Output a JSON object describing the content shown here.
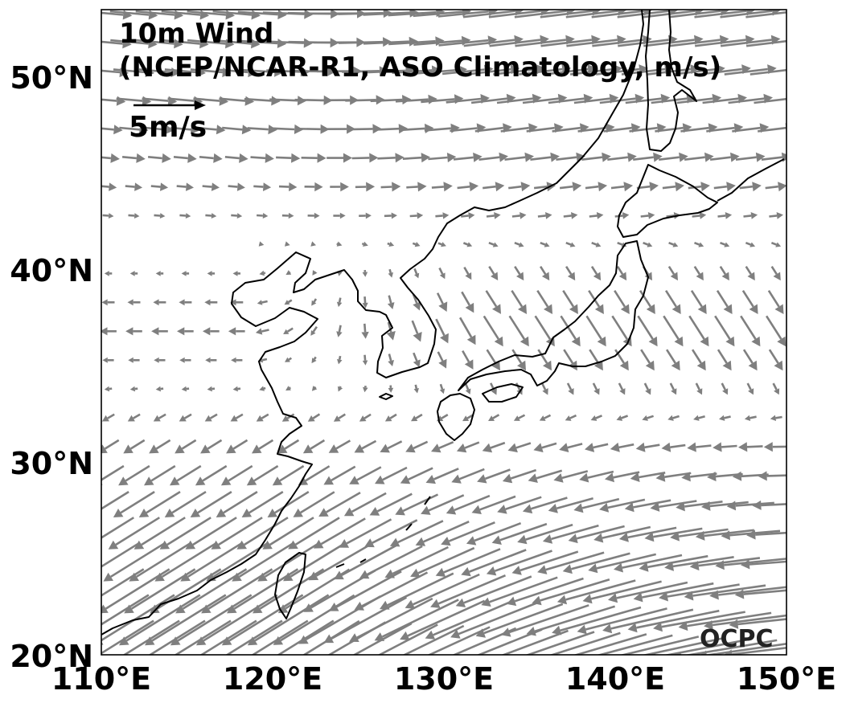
{
  "title_line1": "10m Wind",
  "title_line2": "(NCEP/NCAR-R1, ASO Climatology, m/s)",
  "reference_vector": {
    "label": "5m/s",
    "speed_ms": 5
  },
  "logo": "OCPC",
  "x_ticks": [
    "110°E",
    "120°E",
    "130°E",
    "140°E",
    "150°E"
  ],
  "y_ticks": [
    "20°N",
    "30°N",
    "40°N",
    "50°N"
  ],
  "colors": {
    "vector": "#7f7f7f",
    "coastline": "#000000",
    "reference": "#000000"
  },
  "chart_data": {
    "type": "vector-field",
    "lon_range": [
      110,
      150
    ],
    "lat_range": [
      20,
      53.5
    ],
    "grid_step_deg": 1.5,
    "units": "m/s",
    "reference_speed": 5
  }
}
